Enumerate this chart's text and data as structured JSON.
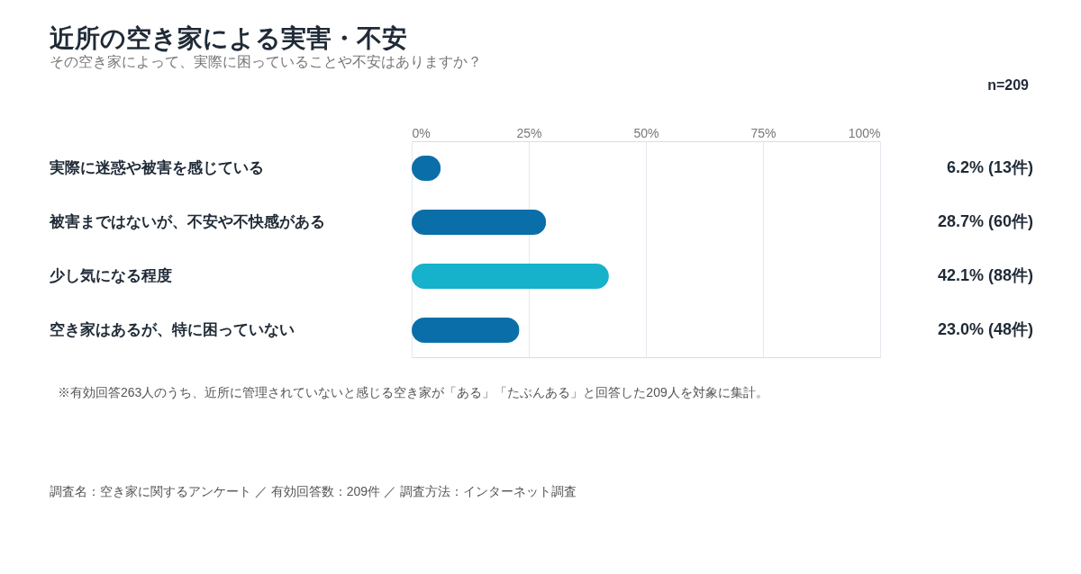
{
  "chart_data": {
    "type": "bar",
    "orientation": "horizontal",
    "title": "近所の空き家による実害・不安",
    "subtitle": "その空き家によって、実際に困っていることや不安はありますか？",
    "categories": [
      "実際に迷惑や被害を感じている",
      "被害まではないが、不安や不快感がある",
      "少し気になる程度",
      "空き家はあるが、特に困っていない"
    ],
    "values": [
      6.2,
      28.7,
      42.1,
      23.0
    ],
    "colors": [
      "#0a6fa8",
      "#0a6fa8",
      "#16b1cb",
      "#0a6fa8"
    ],
    "value_labels": [
      "6.2% (13件)",
      "28.7% (60件)",
      "42.1% (88件)",
      "23.0% (48件)"
    ],
    "xlim": [
      0,
      100
    ],
    "xticks": [
      {
        "value": 0,
        "label": "0%"
      },
      {
        "value": 25,
        "label": "25%"
      },
      {
        "value": 50,
        "label": "50%"
      },
      {
        "value": 75,
        "label": "75%"
      },
      {
        "value": 100,
        "label": "100%"
      }
    ],
    "grid": "x",
    "annotations": [
      "n=209",
      "※有効回答263人のうち、近所に管理されていないと感じる空き家が「ある」「たぶんある」と回答した209人を対象に集計。",
      "調査名：空き家に関するアンケート ／ 有効回答数：209件 ／ 調査方法：インターネット調査"
    ]
  }
}
